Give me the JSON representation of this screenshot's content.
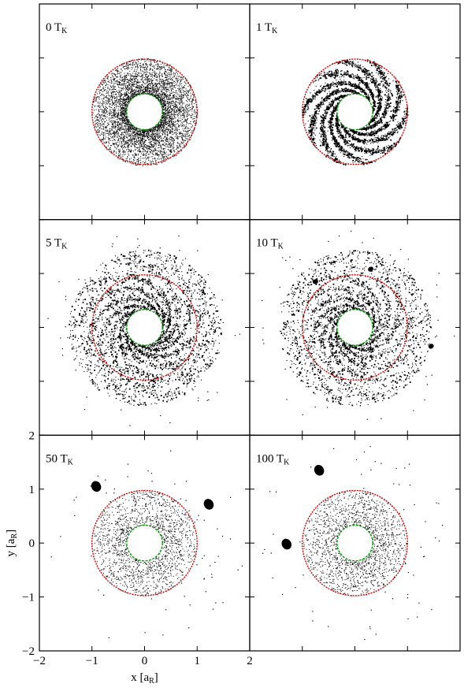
{
  "chart_data": {
    "type": "scatter",
    "layout": "3 rows x 2 columns",
    "panels": [
      {
        "label": "0 T",
        "label_sub": "K",
        "time_TK": 0,
        "structure": "dense smooth disk",
        "outer_ring_radius": 1.0,
        "inner_ring_radius": 0.34,
        "clumps": []
      },
      {
        "label": "1 T",
        "label_sub": "K",
        "time_TK": 1,
        "structure": "spiral arms",
        "outer_ring_radius": 1.0,
        "inner_ring_radius": 0.34,
        "clumps": []
      },
      {
        "label": "5 T",
        "label_sub": "K",
        "time_TK": 5,
        "structure": "spiral clumps",
        "outer_ring_radius": 1.0,
        "inner_ring_radius": 0.34,
        "clumps": []
      },
      {
        "label": "10 T",
        "label_sub": "K",
        "time_TK": 10,
        "structure": "spiral clumps with ejecta",
        "outer_ring_radius": 1.0,
        "inner_ring_radius": 0.34,
        "clumps": [
          {
            "x": 0.3,
            "y": 1.08
          },
          {
            "x": -0.75,
            "y": 0.85
          },
          {
            "x": 1.45,
            "y": -0.35
          }
        ]
      },
      {
        "label": "50 T",
        "label_sub": "K",
        "time_TK": 50,
        "structure": "sparse disk with moonlets",
        "outer_ring_radius": 1.0,
        "inner_ring_radius": 0.34,
        "clumps": [
          {
            "x": -0.92,
            "y": 1.05
          },
          {
            "x": 1.22,
            "y": 0.72
          }
        ]
      },
      {
        "label": "100 T",
        "label_sub": "K",
        "time_TK": 100,
        "structure": "sparse disk with moonlets",
        "outer_ring_radius": 1.0,
        "inner_ring_radius": 0.34,
        "clumps": [
          {
            "x": -0.68,
            "y": 1.35
          },
          {
            "x": -1.3,
            "y": -0.02
          }
        ]
      }
    ],
    "xlabel": "x [a",
    "xlabel_sub": "R",
    "xlabel_end": "]",
    "ylabel": "y [a",
    "ylabel_sub": "R",
    "ylabel_end": "]",
    "xlim": [
      -2,
      2
    ],
    "ylim": [
      -2,
      2
    ],
    "xticks": [
      "−2",
      "−1",
      "0",
      "1",
      "2"
    ],
    "yticks": [
      "−2",
      "−1",
      "0",
      "1",
      "2"
    ],
    "ring_colors": {
      "outer": "#dd0000",
      "inner": "#009900"
    },
    "particle_color": "#000000"
  }
}
